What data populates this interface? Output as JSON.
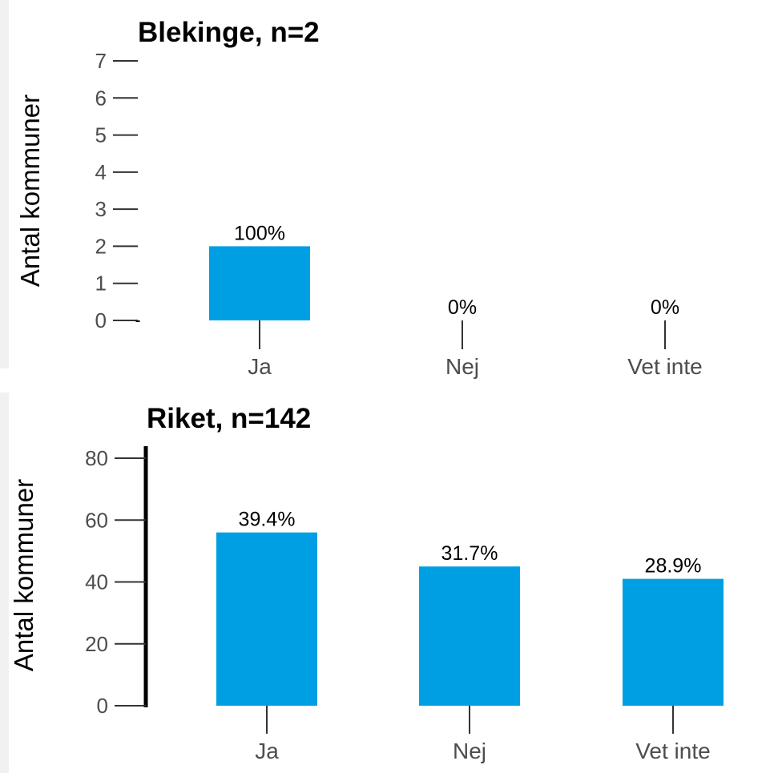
{
  "chart_data": [
    {
      "type": "bar",
      "title": "Blekinge, n=2",
      "ylabel": "Antal kommuner",
      "xlabel": "",
      "categories": [
        "Ja",
        "Nej",
        "Vet inte"
      ],
      "values": [
        2,
        0,
        0
      ],
      "data_labels": [
        "100%",
        "0%",
        "0%"
      ],
      "ylim": [
        0,
        7
      ],
      "yticks": [
        0,
        1,
        2,
        3,
        4,
        5,
        6,
        7
      ],
      "bar_color": "#009fe3",
      "grid": false,
      "legend": "none"
    },
    {
      "type": "bar",
      "title": "Riket, n=142",
      "ylabel": "Antal kommuner",
      "xlabel": "",
      "categories": [
        "Ja",
        "Nej",
        "Vet inte"
      ],
      "values": [
        56,
        45,
        41
      ],
      "data_labels": [
        "39.4%",
        "31.7%",
        "28.9%"
      ],
      "ylim": [
        0,
        80
      ],
      "yticks": [
        0,
        20,
        40,
        60,
        80
      ],
      "bar_color": "#009fe3",
      "grid": false,
      "legend": "none"
    }
  ]
}
